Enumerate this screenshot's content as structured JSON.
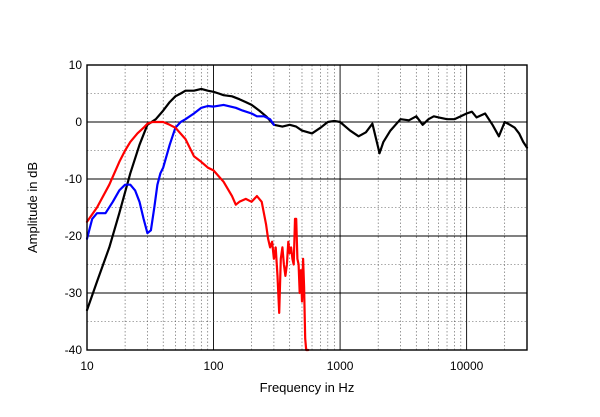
{
  "chart_data": {
    "type": "line",
    "title": "",
    "xlabel": "Frequency in Hz",
    "ylabel": "Amplitude in dB",
    "x_scale": "log",
    "xlim": [
      10,
      30000
    ],
    "ylim": [
      -40,
      10
    ],
    "x_ticks": [
      10,
      100,
      1000,
      10000
    ],
    "x_tick_labels": [
      "10",
      "100",
      "1000",
      "10000"
    ],
    "y_ticks": [
      10,
      0,
      -10,
      -20,
      -30,
      -40
    ],
    "y_tick_labels": [
      "10",
      "0",
      "-10",
      "-20",
      "-30",
      "-40"
    ],
    "y_minor_step": 5,
    "grid": true,
    "legend": "none",
    "series": [
      {
        "color": "#000000",
        "x": [
          10,
          12,
          15,
          18,
          22,
          26,
          30,
          35,
          40,
          45,
          50,
          55,
          60,
          70,
          80,
          90,
          100,
          110,
          120,
          140,
          160,
          180,
          200,
          230,
          260,
          300,
          350,
          400,
          450,
          500,
          600,
          700,
          800,
          900,
          1000,
          1200,
          1400,
          1600,
          1800,
          2000,
          2050,
          2200,
          2500,
          3000,
          3500,
          4000,
          4500,
          5000,
          5500,
          6000,
          7000,
          8000,
          9000,
          10000,
          11000,
          12000,
          14000,
          16000,
          18000,
          20000,
          22000,
          24000,
          26000,
          28000,
          30000
        ],
        "y": [
          -33,
          -28,
          -22,
          -16,
          -9,
          -4,
          -0.5,
          0.5,
          2,
          3.5,
          4.5,
          5,
          5.5,
          5.5,
          5.8,
          5.5,
          5.3,
          5,
          4.7,
          4.5,
          4,
          3.5,
          3,
          2,
          1,
          -0.5,
          -0.8,
          -0.5,
          -0.8,
          -1.5,
          -2,
          -1,
          0,
          0.2,
          0,
          -1.5,
          -2.5,
          -1.8,
          -0.3,
          -4.5,
          -5.5,
          -3.5,
          -1.5,
          0.5,
          0.3,
          1,
          -0.5,
          0.5,
          1,
          0.8,
          0.5,
          0.5,
          1,
          1.5,
          1.8,
          0.8,
          1.5,
          -0.5,
          -2.5,
          0,
          -0.5,
          -1,
          -2,
          -3.5,
          -4.5
        ]
      },
      {
        "color": "#0000ff",
        "x": [
          10,
          11,
          12,
          14,
          16,
          18,
          20,
          22,
          24,
          26,
          28,
          30,
          32,
          34,
          36,
          38,
          40,
          45,
          50,
          55,
          60,
          70,
          80,
          90,
          100,
          120,
          150,
          170,
          200,
          220,
          250,
          280,
          300
        ],
        "y": [
          -20.5,
          -17,
          -16,
          -16,
          -14,
          -12,
          -11,
          -11,
          -12,
          -14,
          -17,
          -19.5,
          -19,
          -15,
          -11,
          -9,
          -8,
          -4,
          -1,
          0,
          0.5,
          1.5,
          2.5,
          2.8,
          2.7,
          3,
          2.5,
          2,
          1.5,
          1,
          1,
          0.5,
          -0.5
        ]
      },
      {
        "color": "#ff0000",
        "x": [
          10,
          12,
          15,
          18,
          20,
          22,
          25,
          28,
          30,
          33,
          36,
          40,
          45,
          50,
          60,
          70,
          80,
          90,
          100,
          120,
          140,
          150,
          160,
          180,
          200,
          220,
          240,
          250,
          260,
          270,
          280,
          290,
          300,
          310,
          320,
          330,
          340,
          350,
          360,
          370,
          380,
          390,
          400,
          410,
          420,
          430,
          440,
          450,
          460,
          470,
          480,
          490,
          500,
          510,
          520,
          530,
          540,
          550,
          560
        ],
        "y": [
          -17.5,
          -15,
          -11,
          -7,
          -5,
          -3.5,
          -2,
          -1,
          -0.3,
          0,
          0,
          0,
          -0.5,
          -1,
          -3,
          -6,
          -7,
          -8,
          -8.5,
          -10.5,
          -13,
          -14.5,
          -14,
          -13.5,
          -14,
          -13,
          -14,
          -16,
          -18,
          -20.5,
          -22,
          -21,
          -24,
          -22,
          -27,
          -33.5,
          -24,
          -22,
          -25,
          -27,
          -25,
          -21,
          -23,
          -22,
          -24,
          -25,
          -17,
          -17,
          -24,
          -25,
          -30,
          -26,
          -31.5,
          -24,
          -29,
          -38,
          -40,
          -40,
          -40
        ]
      }
    ]
  }
}
